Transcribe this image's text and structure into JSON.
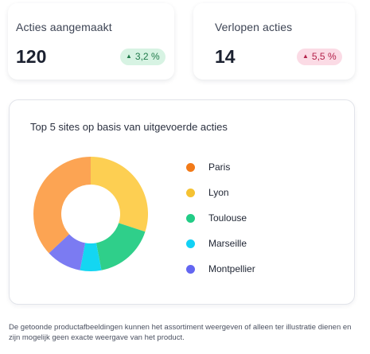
{
  "stats": [
    {
      "label": "Acties aangemaakt",
      "value": "120",
      "change": "3,2 %",
      "direction": "up"
    },
    {
      "label": "Verlopen acties",
      "value": "14",
      "change": "5,5 %",
      "direction": "down"
    }
  ],
  "chart_data": {
    "type": "pie",
    "title": "Top 5 sites op basis van uitgevoerde acties",
    "categories": [
      "Paris",
      "Lyon",
      "Toulouse",
      "Marseille",
      "Montpellier"
    ],
    "values": [
      37,
      30,
      17,
      6,
      10
    ],
    "colors": [
      "#FCA453",
      "#FDCF52",
      "#2FCF8A",
      "#14D6F2",
      "#7B7BF2"
    ],
    "legend_colors": [
      "#F27A18",
      "#F5C232",
      "#22CC86",
      "#12D1F5",
      "#6366F1"
    ],
    "legend_position": "right"
  },
  "disclaimer": "De getoonde productafbeeldingen kunnen het assortiment weergeven of alleen ter illustratie dienen en zijn mogelijk geen exacte weergave van het product."
}
